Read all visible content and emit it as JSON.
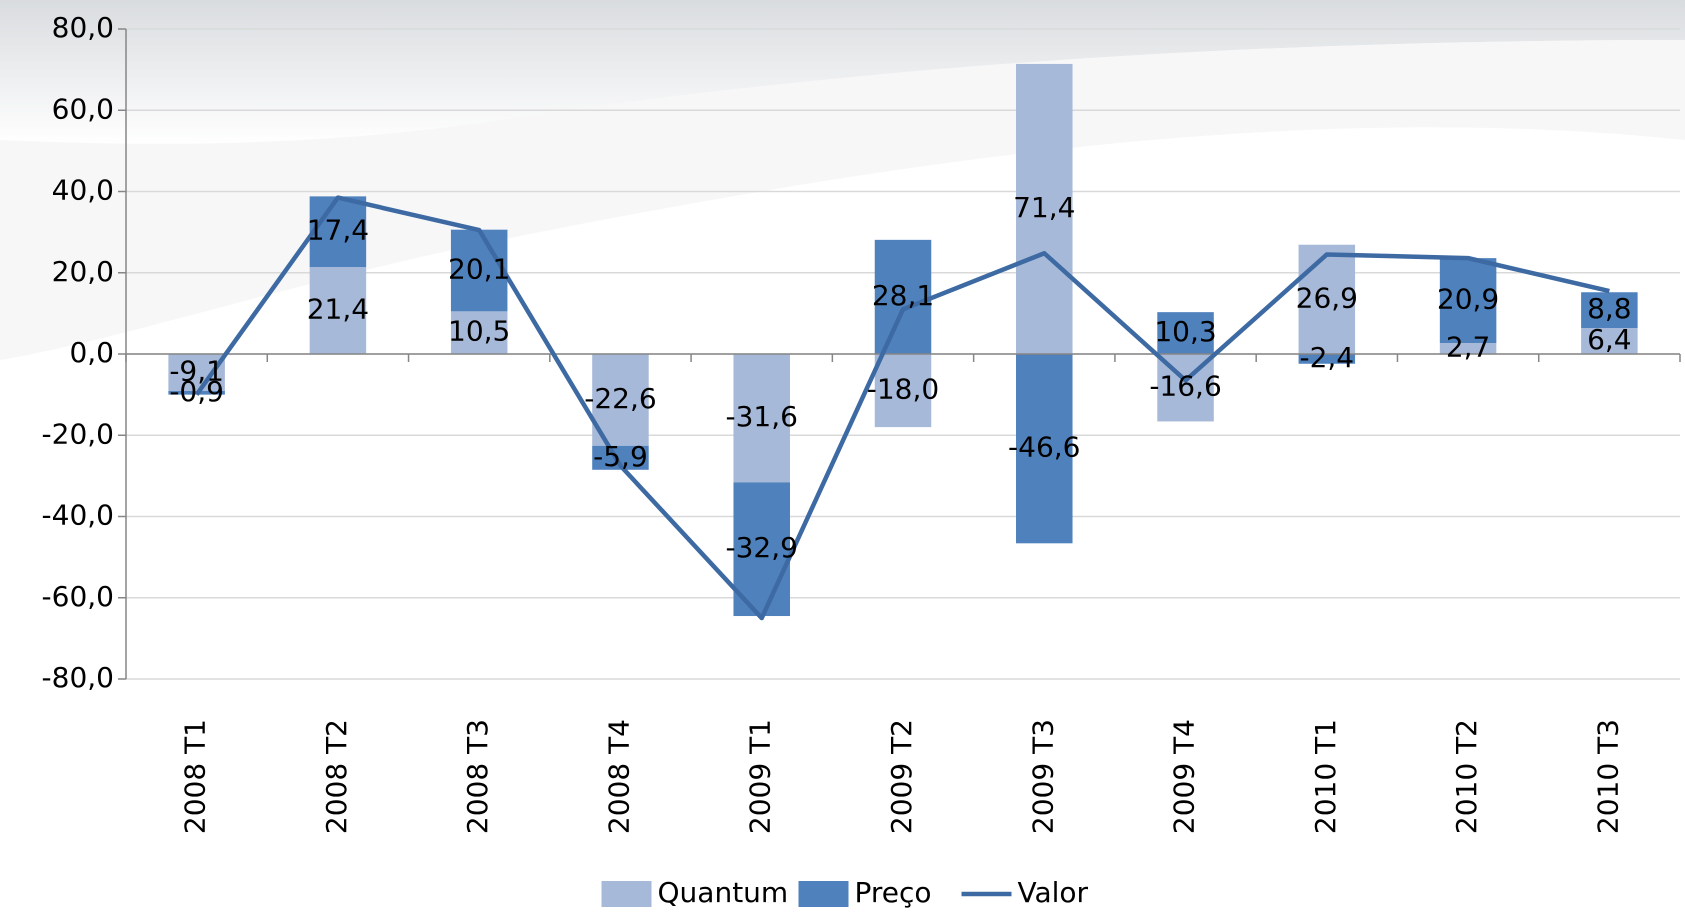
{
  "chart_data": {
    "type": "bar",
    "categories": [
      "2008 T1",
      "2008 T2",
      "2008 T3",
      "2008 T4",
      "2009 T1",
      "2009 T2",
      "2009 T3",
      "2009 T4",
      "2010 T1",
      "2010 T2",
      "2010 T3"
    ],
    "series": [
      {
        "name": "Quantum",
        "type": "bar",
        "color": "#a7b9d9",
        "values": [
          -9.1,
          21.4,
          10.5,
          -22.6,
          -31.6,
          -18.0,
          71.4,
          -16.6,
          26.9,
          2.7,
          6.4
        ],
        "value_labels": [
          "-9,1",
          "21,4",
          "10,5",
          "-22,6",
          "-31,6",
          "-18,0",
          "71,4",
          "-16,6",
          "26,9",
          "2,7",
          "6,4"
        ]
      },
      {
        "name": "Preço",
        "type": "bar",
        "color": "#4f81bd",
        "values": [
          -0.9,
          17.4,
          20.1,
          -5.9,
          -32.9,
          28.1,
          -46.6,
          10.3,
          -2.4,
          20.9,
          8.8
        ],
        "value_labels": [
          "-0,9",
          "17,4",
          "20,1",
          "-5,9",
          "-32,9",
          "28,1",
          "-46,6",
          "10,3",
          "-2,4",
          "20,9",
          "8,8"
        ]
      },
      {
        "name": "Valor",
        "type": "line",
        "color": "#3d6aa3",
        "values": [
          -10.0,
          38.5,
          30.5,
          -27.5,
          -65.0,
          11.0,
          24.8,
          -6.5,
          24.5,
          23.6,
          15.5
        ]
      }
    ],
    "ylim": [
      -80,
      80
    ],
    "yticks": [
      {
        "value": -80,
        "label": "-80,0"
      },
      {
        "value": -60,
        "label": "-60,0"
      },
      {
        "value": -40,
        "label": "-40,0"
      },
      {
        "value": -20,
        "label": "-20,0"
      },
      {
        "value": 0,
        "label": "0,0"
      },
      {
        "value": 20,
        "label": "20,0"
      },
      {
        "value": 40,
        "label": "40,0"
      },
      {
        "value": 60,
        "label": "60,0"
      },
      {
        "value": 80,
        "label": "80,0"
      }
    ],
    "grid": true,
    "legend": "bottom"
  }
}
